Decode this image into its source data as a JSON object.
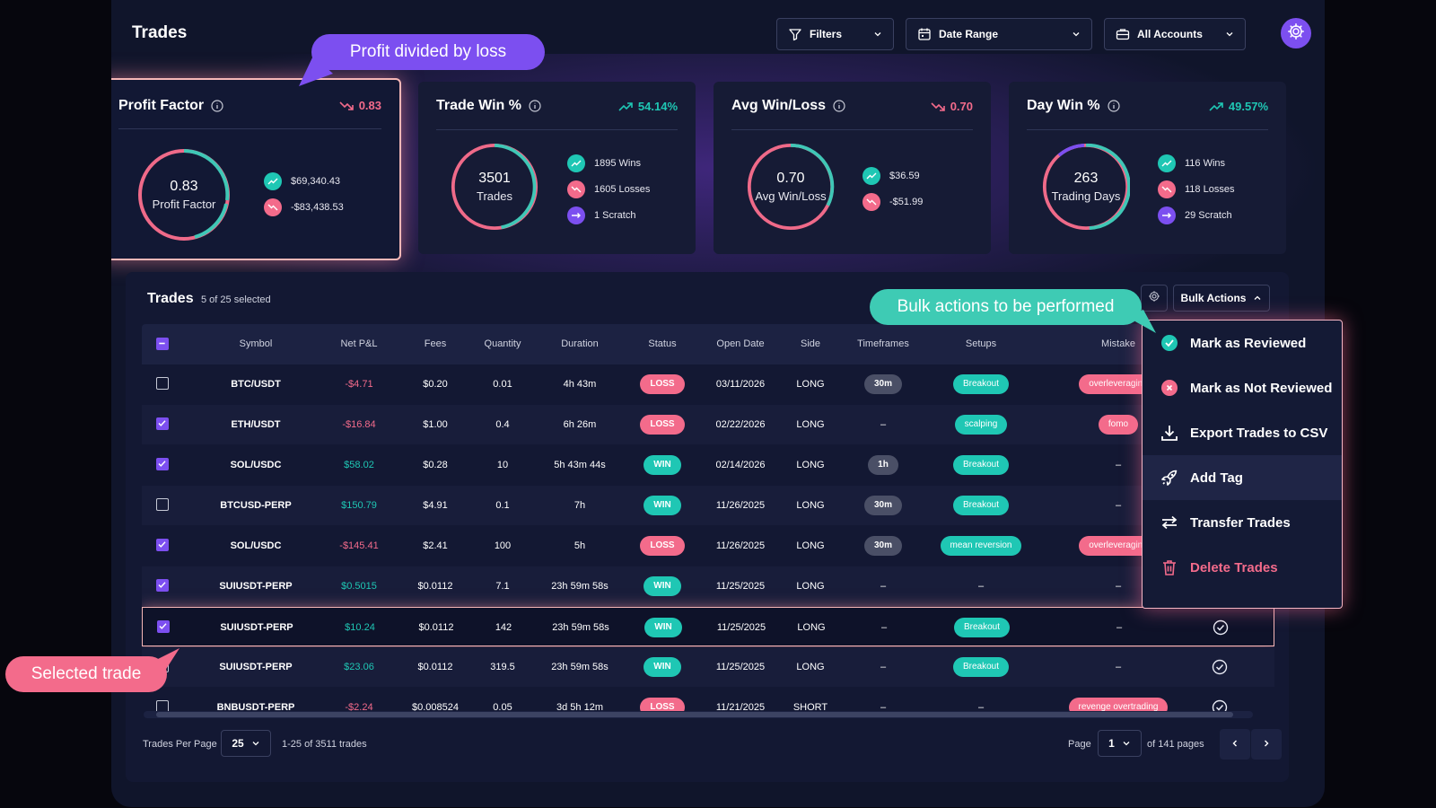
{
  "header": {
    "title": "Trades",
    "filters_label": "Filters",
    "date_range_label": "Date Range",
    "accounts_label": "All Accounts"
  },
  "stats": [
    {
      "title": "Profit Factor",
      "delta": "0.83",
      "trend": "down",
      "ring_value": "0.83",
      "ring_label": "Profit Factor",
      "legend": [
        {
          "type": "win",
          "text": "$69,340.43"
        },
        {
          "type": "loss",
          "text": "-$83,438.53"
        }
      ]
    },
    {
      "title": "Trade Win %",
      "delta": "54.14%",
      "trend": "up",
      "ring_value": "3501",
      "ring_label": "Trades",
      "legend": [
        {
          "type": "win",
          "text": "1895 Wins"
        },
        {
          "type": "loss",
          "text": "1605 Losses"
        },
        {
          "type": "scratch",
          "text": "1 Scratch"
        }
      ]
    },
    {
      "title": "Avg Win/Loss",
      "delta": "0.70",
      "trend": "down",
      "ring_value": "0.70",
      "ring_label": "Avg Win/Loss",
      "legend": [
        {
          "type": "win",
          "text": "$36.59"
        },
        {
          "type": "loss",
          "text": "-$51.99"
        }
      ]
    },
    {
      "title": "Day Win %",
      "delta": "49.57%",
      "trend": "up",
      "ring_value": "263",
      "ring_label": "Trading Days",
      "legend": [
        {
          "type": "win",
          "text": "116 Wins"
        },
        {
          "type": "loss",
          "text": "118 Losses"
        },
        {
          "type": "scratch",
          "text": "29 Scratch"
        }
      ]
    }
  ],
  "trades": {
    "title": "Trades",
    "selected_text": "5 of 25 selected",
    "bulk_label": "Bulk Actions",
    "columns": [
      "Symbol",
      "Net P&L",
      "Fees",
      "Quantity",
      "Duration",
      "Status",
      "Open Date",
      "Side",
      "Timeframes",
      "Setups",
      "Mistake"
    ],
    "rows": [
      {
        "checked": false,
        "symbol": "BTC/USDT",
        "pnl": "-$4.71",
        "pnl_sign": "neg",
        "fees": "$0.20",
        "qty": "0.01",
        "duration": "4h 43m",
        "status": "LOSS",
        "open_date": "03/11/2026",
        "side": "LONG",
        "timeframe": "30m",
        "setup": "Breakout",
        "mistake": "overleveraging",
        "reviewed": false
      },
      {
        "checked": true,
        "symbol": "ETH/USDT",
        "pnl": "-$16.84",
        "pnl_sign": "neg",
        "fees": "$1.00",
        "qty": "0.4",
        "duration": "6h 26m",
        "status": "LOSS",
        "open_date": "02/22/2026",
        "side": "LONG",
        "timeframe": "–",
        "setup": "scalping",
        "mistake": "fomo",
        "reviewed": false
      },
      {
        "checked": true,
        "symbol": "SOL/USDC",
        "pnl": "$58.02",
        "pnl_sign": "pos",
        "fees": "$0.28",
        "qty": "10",
        "duration": "5h 43m 44s",
        "status": "WIN",
        "open_date": "02/14/2026",
        "side": "LONG",
        "timeframe": "1h",
        "setup": "Breakout",
        "mistake": "–",
        "reviewed": false
      },
      {
        "checked": false,
        "symbol": "BTCUSD-PERP",
        "pnl": "$150.79",
        "pnl_sign": "pos",
        "fees": "$4.91",
        "qty": "0.1",
        "duration": "7h",
        "status": "WIN",
        "open_date": "11/26/2025",
        "side": "LONG",
        "timeframe": "30m",
        "setup": "Breakout",
        "mistake": "–",
        "reviewed": false
      },
      {
        "checked": true,
        "symbol": "SOL/USDC",
        "pnl": "-$145.41",
        "pnl_sign": "neg",
        "fees": "$2.41",
        "qty": "100",
        "duration": "5h",
        "status": "LOSS",
        "open_date": "11/26/2025",
        "side": "LONG",
        "timeframe": "30m",
        "setup": "mean reversion",
        "mistake": "overleveraging",
        "reviewed": false
      },
      {
        "checked": true,
        "symbol": "SUIUSDT-PERP",
        "pnl": "$0.5015",
        "pnl_sign": "pos",
        "fees": "$0.0112",
        "qty": "7.1",
        "duration": "23h 59m 58s",
        "status": "WIN",
        "open_date": "11/25/2025",
        "side": "LONG",
        "timeframe": "–",
        "setup": "–",
        "mistake": "–",
        "reviewed": false
      },
      {
        "checked": true,
        "symbol": "SUIUSDT-PERP",
        "pnl": "$10.24",
        "pnl_sign": "pos",
        "fees": "$0.0112",
        "qty": "142",
        "duration": "23h 59m 58s",
        "status": "WIN",
        "open_date": "11/25/2025",
        "side": "LONG",
        "timeframe": "–",
        "setup": "Breakout",
        "mistake": "–",
        "reviewed": true
      },
      {
        "checked": false,
        "symbol": "SUIUSDT-PERP",
        "pnl": "$23.06",
        "pnl_sign": "pos",
        "fees": "$0.0112",
        "qty": "319.5",
        "duration": "23h 59m 58s",
        "status": "WIN",
        "open_date": "11/25/2025",
        "side": "LONG",
        "timeframe": "–",
        "setup": "Breakout",
        "mistake": "–",
        "reviewed": true
      },
      {
        "checked": false,
        "symbol": "BNBUSDT-PERP",
        "pnl": "-$2.24",
        "pnl_sign": "neg",
        "fees": "$0.008524",
        "qty": "0.05",
        "duration": "3d 5h 12m",
        "status": "LOSS",
        "open_date": "11/21/2025",
        "side": "SHORT",
        "timeframe": "–",
        "setup": "–",
        "mistake": "revenge overtrading",
        "reviewed": true
      }
    ]
  },
  "pagination": {
    "per_page_label": "Trades Per Page",
    "per_page_value": "25",
    "range_text": "1-25 of 3511 trades",
    "page_label": "Page",
    "page_value": "1",
    "of_pages": "of 141 pages"
  },
  "bulk_menu": [
    {
      "id": "mark-reviewed",
      "label": "Mark as Reviewed",
      "icon": "check-circle-icon"
    },
    {
      "id": "mark-not-reviewed",
      "label": "Mark as Not Reviewed",
      "icon": "x-circle-icon"
    },
    {
      "id": "export-csv",
      "label": "Export Trades to CSV",
      "icon": "download-icon"
    },
    {
      "id": "add-tag",
      "label": "Add Tag",
      "icon": "rocket-icon"
    },
    {
      "id": "transfer",
      "label": "Transfer Trades",
      "icon": "transfer-icon"
    },
    {
      "id": "delete",
      "label": "Delete Trades",
      "icon": "trash-icon"
    }
  ],
  "callouts": {
    "profit": "Profit divided by loss",
    "bulk": "Bulk actions to be performed",
    "selected": "Selected trade"
  },
  "colors": {
    "accent": "#7c4ff0",
    "win": "#1fc7b4",
    "loss": "#f36b8b",
    "ring_pink": "#ef6a89",
    "ring_teal": "#3fc7b6",
    "ring_purple": "#7c4ff0"
  }
}
